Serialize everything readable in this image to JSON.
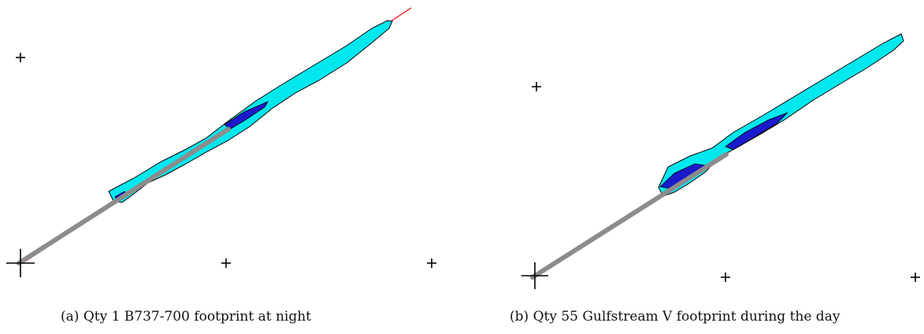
{
  "figure": {
    "panels": [
      {
        "label": "(a)",
        "caption": "Qty 1 B737-700 footprint at night"
      },
      {
        "label": "(b)",
        "caption": "Qty 55 Gulfstream V footprint during the day"
      }
    ]
  },
  "colors": {
    "outer_contour": "#00e8ee",
    "inner_contour": "#1a1acc",
    "contour_outline": "#000000",
    "ground_track": "#8c8c8c",
    "flight_track": "#ff0000",
    "marker": "#000000",
    "background": "#ffffff"
  }
}
